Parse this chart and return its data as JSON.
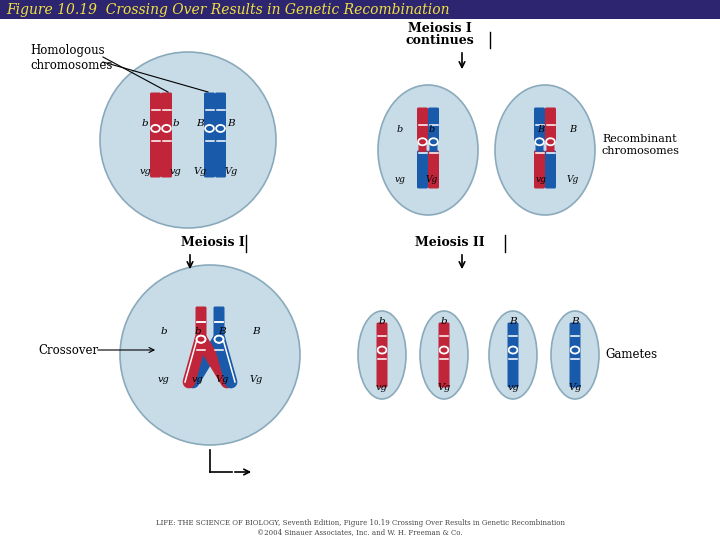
{
  "title": "Figure 10.19  Crossing Over Results in Genetic Recombination",
  "title_color": "#f0e040",
  "title_bg": "#2d2570",
  "bg_color": "#ffffff",
  "red": "#c0253a",
  "blue": "#1a5aaa",
  "cfill": "#c8dce8",
  "cedge": "#8aaabb",
  "footer1": "LIFE: THE SCIENCE OF BIOLOGY, Seventh Edition, Figure 10.19 Crossing Over Results in Genetic Recombination",
  "footer2": "©2004 Sinauer Associates, Inc. and W. H. Freeman & Co."
}
